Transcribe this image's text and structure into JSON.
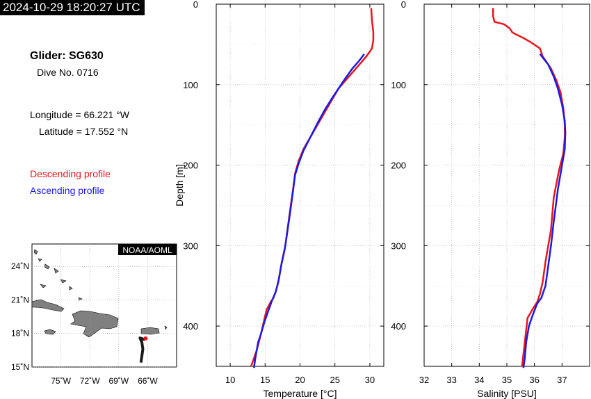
{
  "header": {
    "timestamp": "2024-10-29 18:20:27 UTC",
    "glider": "Glider: SG630",
    "dive": "Dive No. 0716",
    "longitude": "Longitude = 66.221 °W",
    "latitude": "Latitude = 17.552 °N",
    "legend_descending": "Descending profile",
    "legend_ascending": "Ascending profile"
  },
  "colors": {
    "descending": "#e8141c",
    "ascending": "#1a1ae6",
    "land": "#808080",
    "track": "#1a1a1a"
  },
  "map": {
    "badge": "NOAA/AOML",
    "lat_ticks": [
      {
        "v": 24,
        "label": "24˚N"
      },
      {
        "v": 21,
        "label": "21˚N"
      },
      {
        "v": 18,
        "label": "18˚N"
      },
      {
        "v": 15,
        "label": "15˚N"
      }
    ],
    "lon_ticks": [
      {
        "v": -75,
        "label": "75˚W"
      },
      {
        "v": -72,
        "label": "72˚W"
      },
      {
        "v": -69,
        "label": "69˚W"
      },
      {
        "v": -66,
        "label": "66˚W"
      }
    ],
    "track": [
      [
        -66.3,
        17.45
      ],
      [
        -66.8,
        17.6
      ],
      [
        -66.6,
        17.2
      ],
      [
        -66.5,
        16.6
      ],
      [
        -66.6,
        16.0
      ],
      [
        -66.7,
        15.4
      ]
    ],
    "position": [
      -66.221,
      17.552
    ]
  },
  "chart_data": [
    {
      "type": "line",
      "xlabel": "Temperature [°C]",
      "ylabel": "Depth [m]",
      "xlim": [
        8,
        32
      ],
      "ylim": [
        450,
        0
      ],
      "xticks": [
        10,
        15,
        20,
        25,
        30
      ],
      "yticks": [
        0,
        100,
        200,
        300,
        400
      ],
      "series": [
        {
          "name": "Descending profile",
          "color": "#e8141c",
          "x": [
            30.2,
            30.3,
            30.5,
            30.5,
            30.3,
            29.5,
            28.5,
            27.5,
            26.5,
            25.5,
            24.5,
            23.5,
            22.5,
            21.5,
            20.5,
            19.8,
            19.3,
            19.0,
            18.6,
            18.2,
            17.9,
            17.4,
            17.0,
            16.6,
            16.2,
            15.8,
            15.2,
            14.8,
            14.4,
            14.1,
            13.8,
            13.4,
            13.0
          ],
          "y": [
            5,
            20,
            35,
            45,
            55,
            65,
            75,
            85,
            95,
            105,
            120,
            135,
            150,
            165,
            180,
            195,
            210,
            230,
            255,
            280,
            300,
            320,
            340,
            355,
            365,
            370,
            380,
            395,
            410,
            420,
            430,
            440,
            450
          ]
        },
        {
          "name": "Ascending profile",
          "color": "#1a1ae6",
          "x": [
            29.2,
            28.5,
            27.5,
            26.5,
            25.5,
            24.5,
            23.5,
            22.5,
            21.5,
            20.5,
            19.8,
            19.3,
            19.0,
            18.6,
            18.2,
            17.8,
            17.3,
            16.9,
            16.5,
            16.3,
            16.0,
            15.5,
            14.9,
            14.4,
            14.0,
            13.6,
            13.4
          ],
          "y": [
            62,
            70,
            80,
            92,
            105,
            118,
            132,
            148,
            165,
            182,
            198,
            212,
            232,
            258,
            282,
            305,
            325,
            345,
            358,
            362,
            368,
            380,
            395,
            410,
            420,
            440,
            452
          ]
        }
      ]
    },
    {
      "type": "line",
      "xlabel": "Salinity [PSU]",
      "ylim": [
        450,
        0
      ],
      "xlim": [
        32,
        38
      ],
      "xticks": [
        32,
        33,
        34,
        35,
        36,
        37
      ],
      "yticks": [
        0,
        100,
        200,
        300,
        400
      ],
      "series": [
        {
          "name": "Descending profile",
          "color": "#e8141c",
          "x": [
            34.5,
            34.5,
            34.55,
            34.9,
            35.1,
            35.2,
            35.3,
            35.6,
            35.9,
            36.2,
            36.3,
            36.6,
            36.8,
            36.95,
            37.05,
            37.1,
            37.1,
            37.05,
            36.9,
            36.7,
            36.6,
            36.5,
            36.4,
            36.3,
            36.2,
            36.1,
            35.95,
            35.75,
            35.7,
            35.65,
            35.6,
            35.55
          ],
          "y": [
            5,
            15,
            22,
            25,
            30,
            35,
            37,
            42,
            48,
            55,
            65,
            80,
            95,
            110,
            130,
            150,
            165,
            185,
            205,
            240,
            280,
            300,
            320,
            345,
            360,
            370,
            378,
            390,
            405,
            420,
            435,
            450
          ]
        },
        {
          "name": "Ascending profile",
          "color": "#1a1ae6",
          "x": [
            36.2,
            36.5,
            36.7,
            36.85,
            37.0,
            37.1,
            37.12,
            37.1,
            37.0,
            36.85,
            36.7,
            36.6,
            36.5,
            36.4,
            36.25,
            36.1,
            35.95,
            35.8,
            35.7,
            35.65,
            35.6
          ],
          "y": [
            62,
            75,
            90,
            105,
            125,
            145,
            160,
            180,
            200,
            230,
            270,
            300,
            325,
            350,
            365,
            372,
            385,
            400,
            420,
            440,
            452
          ]
        }
      ]
    }
  ]
}
